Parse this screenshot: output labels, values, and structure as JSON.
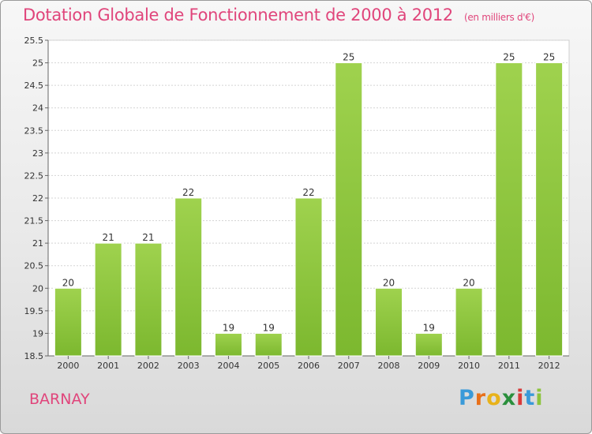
{
  "title": "Dotation Globale de Fonctionnement de 2000 à 2012",
  "unit": "(en milliers d'€)",
  "city": "BARNAY",
  "logo": {
    "letters": [
      "P",
      "r",
      "o",
      "x",
      "i",
      "t",
      "i"
    ],
    "colors": [
      "#3a9ad9",
      "#e8701a",
      "#e8b21a",
      "#2a8f3c",
      "#d83a3a",
      "#3a9ad9",
      "#8cc43c"
    ]
  },
  "colors": {
    "bar": "#7cb82f",
    "bar_light": "#9fd24e",
    "title": "#e0457b"
  },
  "chart_data": {
    "type": "bar",
    "categories": [
      "2000",
      "2001",
      "2002",
      "2003",
      "2004",
      "2005",
      "2006",
      "2007",
      "2008",
      "2009",
      "2010",
      "2011",
      "2012"
    ],
    "values": [
      20,
      21,
      21,
      22,
      19,
      19,
      22,
      25,
      20,
      19,
      20,
      25,
      25
    ],
    "data_labels": [
      "20",
      "21",
      "21",
      "22",
      "19",
      "19",
      "22",
      "25",
      "20",
      "19",
      "20",
      "25",
      "25"
    ],
    "y_ticks": [
      "18.5",
      "19",
      "19.5",
      "20",
      "20.5",
      "21",
      "21.5",
      "22",
      "22.5",
      "23",
      "23.5",
      "24",
      "24.5",
      "25",
      "25.5"
    ],
    "ylim": [
      18.5,
      25.5
    ],
    "grid": true,
    "legend": "none"
  }
}
